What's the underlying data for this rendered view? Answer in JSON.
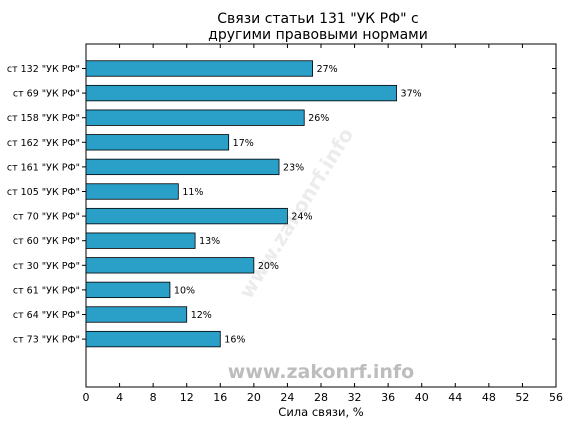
{
  "chart_data": {
    "type": "bar",
    "orientation": "horizontal",
    "title_lines": [
      "Связи статьи 131 \"УК РФ\" с",
      "другими правовыми нормами"
    ],
    "categories": [
      "ст 132 \"УК РФ\"",
      "ст 69 \"УК РФ\"",
      "ст 158 \"УК РФ\"",
      "ст 162 \"УК РФ\"",
      "ст 161 \"УК РФ\"",
      "ст 105 \"УК РФ\"",
      "ст 70 \"УК РФ\"",
      "ст 60 \"УК РФ\"",
      "ст 30 \"УК РФ\"",
      "ст 61 \"УК РФ\"",
      "ст 64 \"УК РФ\"",
      "ст 73 \"УК РФ\""
    ],
    "values": [
      27,
      37,
      26,
      17,
      23,
      11,
      24,
      13,
      20,
      10,
      12,
      16
    ],
    "value_labels": [
      "27%",
      "37%",
      "26%",
      "17%",
      "23%",
      "11%",
      "24%",
      "13%",
      "20%",
      "10%",
      "12%",
      "16%"
    ],
    "xlabel": "Сила связи, %",
    "xlim": [
      0,
      56
    ],
    "xticks": [
      "0",
      "4",
      "8",
      "12",
      "16",
      "20",
      "24",
      "28",
      "32",
      "36",
      "40",
      "44",
      "48",
      "52",
      "56"
    ],
    "bar_color": "#2a9fc8",
    "grid": false,
    "watermark": "www.zakonrf.info"
  }
}
